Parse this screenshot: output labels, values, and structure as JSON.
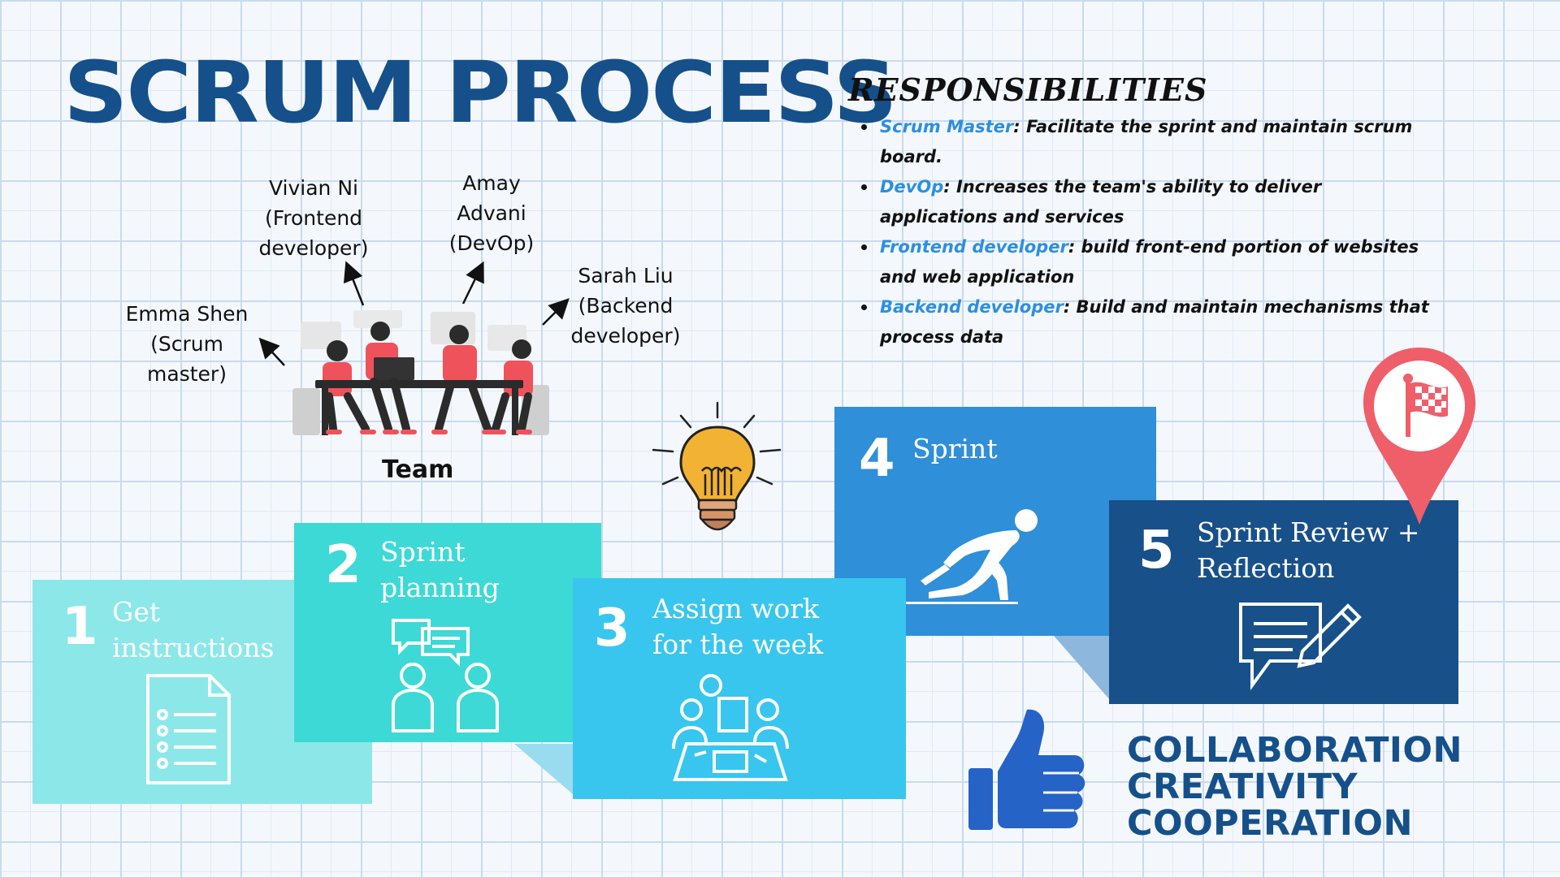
{
  "title": "SCRUM PROCESS",
  "responsibilities": {
    "heading": "RESPONSIBILITIES",
    "items": [
      {
        "role": "Scrum Master",
        "desc": ": Facilitate the sprint and maintain scrum board."
      },
      {
        "role": "DevOp",
        "desc": ": Increases the team's ability to deliver applications and services"
      },
      {
        "role": "Frontend developer",
        "desc": ": build front-end portion of websites and web application"
      },
      {
        "role": "Backend developer",
        "desc": ": Build and maintain mechanisms that process data"
      }
    ]
  },
  "team": {
    "label": "Team",
    "members": {
      "emma": "Emma Shen\n(Scrum\nmaster)",
      "vivian": "Vivian Ni\n(Frontend\ndeveloper)",
      "amay": "Amay\nAdvani\n(DevOp)",
      "sarah": "Sarah Liu\n(Backend\ndeveloper)"
    }
  },
  "steps": [
    {
      "number": "1",
      "label": "Get\ninstructions",
      "icon": "document-list-icon",
      "color": "#8ce8e8"
    },
    {
      "number": "2",
      "label": "Sprint\nplanning",
      "icon": "discussion-icon",
      "color": "#3dd9d6"
    },
    {
      "number": "3",
      "label": "Assign work\nfor the week",
      "icon": "meeting-table-icon",
      "color": "#38c6ee"
    },
    {
      "number": "4",
      "label": "Sprint",
      "icon": "sprinter-icon",
      "color": "#2f8fd8"
    },
    {
      "number": "5",
      "label": "Sprint Review +\nReflection",
      "icon": "feedback-pencil-icon",
      "color": "#18508a"
    }
  ],
  "values": [
    "COLLABORATION",
    "CREATIVITY",
    "COOPERATION"
  ],
  "colors": {
    "title": "#15508a",
    "role_highlight": "#2c8fe0",
    "pin": "#ee5f6a",
    "thumb": "#2563c7",
    "bulb": "#f2b233"
  }
}
